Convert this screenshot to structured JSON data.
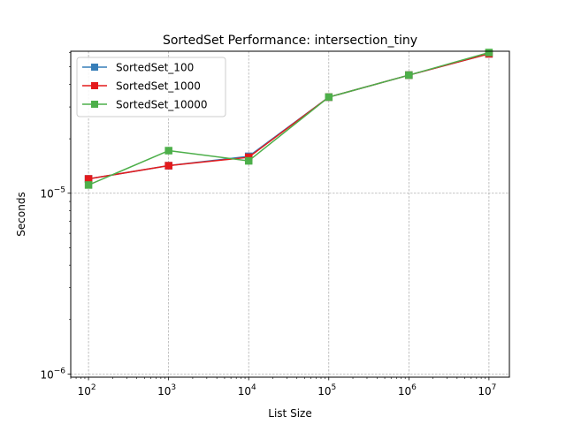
{
  "chart_data": {
    "type": "line",
    "title": "SortedSet Performance: intersection_tiny",
    "xlabel": "List Size",
    "ylabel": "Seconds",
    "xscale": "log",
    "yscale": "log",
    "xlim": [
      60,
      18000000
    ],
    "ylim": [
      9.6e-07,
      6.1e-05
    ],
    "grid": true,
    "legend_position": "top-left",
    "x": [
      100,
      1000,
      10000,
      100000,
      1000000,
      10000000
    ],
    "x_ticks": [
      {
        "value": 100,
        "base": "10",
        "exp": "2"
      },
      {
        "value": 1000,
        "base": "10",
        "exp": "3"
      },
      {
        "value": 10000,
        "base": "10",
        "exp": "4"
      },
      {
        "value": 100000,
        "base": "10",
        "exp": "5"
      },
      {
        "value": 1000000,
        "base": "10",
        "exp": "6"
      },
      {
        "value": 10000000,
        "base": "10",
        "exp": "7"
      }
    ],
    "y_ticks": [
      {
        "value": 1e-06,
        "base": "10",
        "exp": "−6"
      },
      {
        "value": 1e-05,
        "base": "10",
        "exp": "−5"
      }
    ],
    "series": [
      {
        "name": "SortedSet_100",
        "color": "#377eb8",
        "values": [
          1.2e-05,
          1.42e-05,
          1.6e-05,
          3.4e-05,
          4.5e-05,
          5.9e-05
        ]
      },
      {
        "name": "SortedSet_1000",
        "color": "#e41a1c",
        "values": [
          1.2e-05,
          1.42e-05,
          1.58e-05,
          3.4e-05,
          4.5e-05,
          5.9e-05
        ]
      },
      {
        "name": "SortedSet_10000",
        "color": "#4daf4a",
        "values": [
          1.11e-05,
          1.72e-05,
          1.51e-05,
          3.4e-05,
          4.5e-05,
          6e-05
        ]
      }
    ]
  }
}
